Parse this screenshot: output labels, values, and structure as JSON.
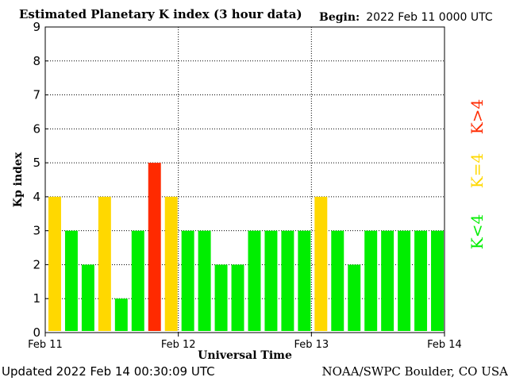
{
  "header": {
    "title": "Estimated Planetary K index (3 hour data)",
    "begin_label": "Begin:",
    "begin_value": "2022 Feb 11 0000 UTC"
  },
  "footer": {
    "updated": "Updated 2022 Feb 14 00:30:09 UTC",
    "source": "NOAA/SWPC Boulder, CO USA"
  },
  "legend": {
    "items": [
      {
        "label": "K>4",
        "color": "#ff2a00"
      },
      {
        "label": "K=4",
        "color": "#ffd800"
      },
      {
        "label": "K<4",
        "color": "#00ee00"
      }
    ]
  },
  "chart_data": {
    "type": "bar",
    "title": "Estimated Planetary K index (3 hour data)",
    "xlabel": "Universal Time",
    "ylabel": "Kp index",
    "ylim": [
      0,
      9
    ],
    "yticks": [
      0,
      1,
      2,
      3,
      4,
      5,
      6,
      7,
      8,
      9
    ],
    "xticks": [
      "Feb 11",
      "Feb 12",
      "Feb 13",
      "Feb 14"
    ],
    "bin_hours": 3,
    "grid": true,
    "values": [
      4,
      3,
      2,
      4,
      1,
      3,
      5,
      4,
      3,
      3,
      2,
      2,
      3,
      3,
      3,
      3,
      4,
      3,
      2,
      3,
      3,
      3,
      3,
      3
    ],
    "colors": {
      "below4": "#00ee00",
      "equal4": "#ffd800",
      "above4": "#ff2a00"
    }
  }
}
